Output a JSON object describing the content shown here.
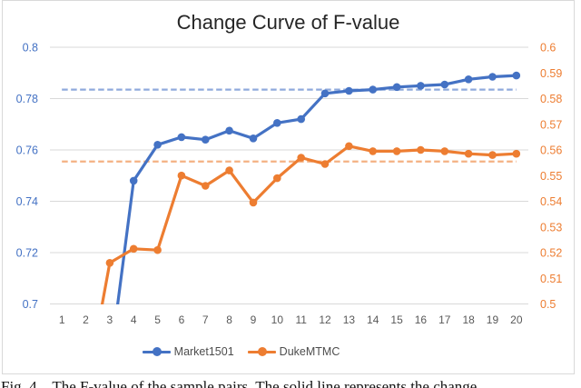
{
  "figure": {
    "caption": "Fig. 4.   The F-value of the sample pairs. The solid line represents the change"
  },
  "chart_data": {
    "type": "line",
    "title": "Change Curve of F-value",
    "x_axis": {
      "labels": [
        "1",
        "2",
        "3",
        "4",
        "5",
        "6",
        "7",
        "8",
        "9",
        "10",
        "11",
        "12",
        "13",
        "14",
        "15",
        "16",
        "17",
        "18",
        "19",
        "20"
      ],
      "color": "#595959"
    },
    "left_axis": {
      "min": 0.7,
      "max": 0.8,
      "ticks": [
        "0.8",
        "0.78",
        "0.76",
        "0.74",
        "0.72",
        "0.7"
      ],
      "color": "#4472C4"
    },
    "right_axis": {
      "min": 0.5,
      "max": 0.6,
      "ticks": [
        "0.6",
        "0.59",
        "0.58",
        "0.57",
        "0.56",
        "0.55",
        "0.54",
        "0.53",
        "0.52",
        "0.51",
        "0.5"
      ],
      "color": "#ED7D31"
    },
    "grid": true,
    "gridline_color": "#d9d9d9",
    "legend_position": "bottom",
    "series": [
      {
        "name": "Market1501",
        "axis": "left",
        "color": "#4472C4",
        "values": [
          null,
          null,
          0.676,
          0.748,
          0.762,
          0.765,
          0.764,
          0.7675,
          0.7645,
          0.7705,
          0.772,
          0.782,
          0.783,
          0.7835,
          0.7845,
          0.785,
          0.7855,
          0.7875,
          0.7885,
          0.789
        ]
      },
      {
        "name": "DukeMTMC",
        "axis": "right",
        "color": "#ED7D31",
        "values": [
          null,
          0.465,
          0.516,
          0.5215,
          0.521,
          0.55,
          0.546,
          0.552,
          0.5395,
          0.549,
          0.557,
          0.5545,
          0.5615,
          0.5595,
          0.5595,
          0.56,
          0.5595,
          0.5585,
          0.558,
          0.5585
        ]
      }
    ],
    "reference_lines": [
      {
        "series": "Market1501",
        "axis": "left",
        "value": 0.7835,
        "color": "#8FAADC",
        "style": "dashed"
      },
      {
        "series": "DukeMTMC",
        "axis": "right",
        "value": 0.5555,
        "color": "#F4B183",
        "style": "dashed"
      }
    ]
  }
}
